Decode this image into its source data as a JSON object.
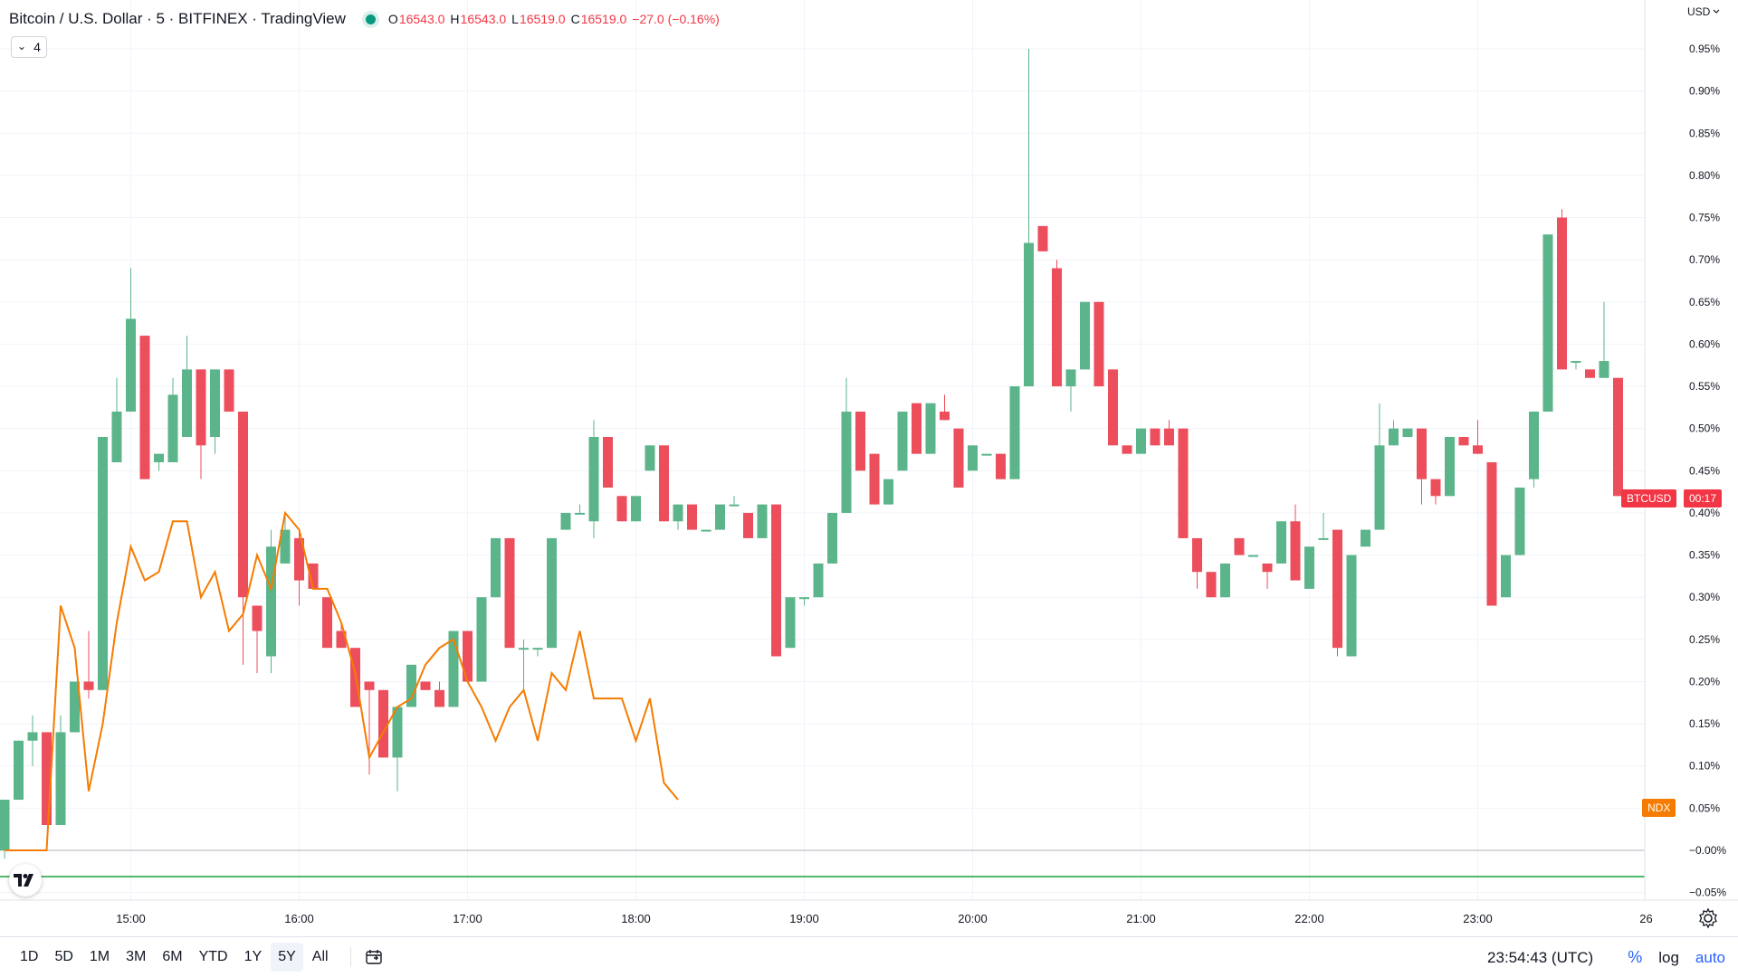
{
  "header": {
    "symbol_title": "Bitcoin / U.S. Dollar · 5 · BITFINEX · TradingView",
    "ohlc": {
      "o_label": "O",
      "o": "16543.0",
      "h_label": "H",
      "h": "16543.0",
      "l_label": "L",
      "l": "16519.0",
      "c_label": "C",
      "c": "16519.0",
      "change": "−27.0 (−0.16%)"
    },
    "indicator_count": "4"
  },
  "price_axis": {
    "currency_label": "USD",
    "btc_tag": "BTCUSD",
    "btc_countdown": "00:17",
    "ndx_tag": "NDX"
  },
  "bottom_bar": {
    "ranges": [
      "1D",
      "5D",
      "1M",
      "3M",
      "6M",
      "YTD",
      "1Y",
      "5Y",
      "All"
    ],
    "active_range": "5Y",
    "clock": "23:54:43 (UTC)",
    "percent_label": "%",
    "log_label": "log",
    "auto_label": "auto"
  },
  "colors": {
    "up": "#26a69a",
    "up_bar": "#5bb48a",
    "down": "#ef5350",
    "down_bar": "#ec4e5c",
    "ndx_line": "#f57c00",
    "base_line": "#1aa33a",
    "grid": "#f0f3fa"
  },
  "chart_data": {
    "type": "candlestick",
    "ylabel": "%",
    "ylim": [
      -0.06,
      0.98
    ],
    "y_ticks": [
      "0.95%",
      "0.90%",
      "0.85%",
      "0.80%",
      "0.75%",
      "0.70%",
      "0.65%",
      "0.60%",
      "0.55%",
      "0.50%",
      "0.45%",
      "0.40%",
      "0.35%",
      "0.30%",
      "0.25%",
      "0.20%",
      "0.15%",
      "0.10%",
      "0.05%",
      "−0.00%",
      "−0.05%"
    ],
    "x_ticks": [
      "15:00",
      "16:00",
      "17:00",
      "18:00",
      "19:00",
      "20:00",
      "21:00",
      "22:00",
      "23:00",
      "26"
    ],
    "time_start": "14:15",
    "bar_minutes": 5,
    "series": [
      {
        "name": "BTCUSD",
        "ohlc_pct": [
          [
            0.0,
            0.06,
            -0.01,
            0.06
          ],
          [
            0.06,
            0.13,
            0.06,
            0.13
          ],
          [
            0.13,
            0.16,
            0.1,
            0.14
          ],
          [
            0.14,
            0.14,
            0.03,
            0.03
          ],
          [
            0.03,
            0.16,
            0.03,
            0.14
          ],
          [
            0.14,
            0.2,
            0.14,
            0.2
          ],
          [
            0.2,
            0.26,
            0.18,
            0.19
          ],
          [
            0.19,
            0.49,
            0.19,
            0.49
          ],
          [
            0.46,
            0.56,
            0.46,
            0.52
          ],
          [
            0.52,
            0.69,
            0.52,
            0.63
          ],
          [
            0.61,
            0.61,
            0.44,
            0.44
          ],
          [
            0.46,
            0.47,
            0.45,
            0.47
          ],
          [
            0.46,
            0.56,
            0.46,
            0.54
          ],
          [
            0.49,
            0.61,
            0.49,
            0.57
          ],
          [
            0.57,
            0.57,
            0.44,
            0.48
          ],
          [
            0.49,
            0.57,
            0.47,
            0.57
          ],
          [
            0.57,
            0.57,
            0.52,
            0.52
          ],
          [
            0.52,
            0.52,
            0.22,
            0.3
          ],
          [
            0.29,
            0.29,
            0.21,
            0.26
          ],
          [
            0.23,
            0.38,
            0.21,
            0.36
          ],
          [
            0.34,
            0.4,
            0.34,
            0.38
          ],
          [
            0.37,
            0.38,
            0.29,
            0.32
          ],
          [
            0.34,
            0.34,
            0.31,
            0.31
          ],
          [
            0.3,
            0.3,
            0.24,
            0.24
          ],
          [
            0.26,
            0.27,
            0.24,
            0.24
          ],
          [
            0.24,
            0.24,
            0.17,
            0.17
          ],
          [
            0.2,
            0.2,
            0.09,
            0.19
          ],
          [
            0.19,
            0.19,
            0.11,
            0.11
          ],
          [
            0.11,
            0.17,
            0.07,
            0.17
          ],
          [
            0.17,
            0.22,
            0.17,
            0.22
          ],
          [
            0.2,
            0.2,
            0.19,
            0.19
          ],
          [
            0.19,
            0.2,
            0.17,
            0.17
          ],
          [
            0.17,
            0.26,
            0.17,
            0.26
          ],
          [
            0.26,
            0.26,
            0.2,
            0.2
          ],
          [
            0.2,
            0.3,
            0.2,
            0.3
          ],
          [
            0.3,
            0.37,
            0.3,
            0.37
          ],
          [
            0.37,
            0.37,
            0.24,
            0.24
          ],
          [
            0.24,
            0.25,
            0.19,
            0.24
          ],
          [
            0.24,
            0.24,
            0.23,
            0.24
          ],
          [
            0.24,
            0.37,
            0.24,
            0.37
          ],
          [
            0.38,
            0.4,
            0.38,
            0.4
          ],
          [
            0.4,
            0.41,
            0.4,
            0.4
          ],
          [
            0.39,
            0.51,
            0.37,
            0.49
          ],
          [
            0.49,
            0.49,
            0.43,
            0.43
          ],
          [
            0.42,
            0.42,
            0.39,
            0.39
          ],
          [
            0.39,
            0.42,
            0.39,
            0.42
          ],
          [
            0.45,
            0.48,
            0.45,
            0.48
          ],
          [
            0.48,
            0.48,
            0.39,
            0.39
          ],
          [
            0.39,
            0.4,
            0.38,
            0.41
          ],
          [
            0.41,
            0.41,
            0.38,
            0.38
          ],
          [
            0.38,
            0.38,
            0.38,
            0.38
          ],
          [
            0.38,
            0.41,
            0.38,
            0.41
          ],
          [
            0.41,
            0.42,
            0.41,
            0.41
          ],
          [
            0.4,
            0.4,
            0.37,
            0.37
          ],
          [
            0.37,
            0.41,
            0.37,
            0.41
          ],
          [
            0.41,
            0.41,
            0.23,
            0.23
          ],
          [
            0.24,
            0.3,
            0.24,
            0.3
          ],
          [
            0.3,
            0.3,
            0.29,
            0.3
          ],
          [
            0.3,
            0.34,
            0.3,
            0.34
          ],
          [
            0.34,
            0.4,
            0.34,
            0.4
          ],
          [
            0.4,
            0.56,
            0.4,
            0.52
          ],
          [
            0.52,
            0.52,
            0.45,
            0.45
          ],
          [
            0.47,
            0.47,
            0.41,
            0.41
          ],
          [
            0.41,
            0.44,
            0.41,
            0.44
          ],
          [
            0.45,
            0.52,
            0.45,
            0.52
          ],
          [
            0.53,
            0.53,
            0.47,
            0.47
          ],
          [
            0.47,
            0.53,
            0.47,
            0.53
          ],
          [
            0.52,
            0.54,
            0.51,
            0.51
          ],
          [
            0.5,
            0.5,
            0.43,
            0.43
          ],
          [
            0.45,
            0.48,
            0.45,
            0.48
          ],
          [
            0.47,
            0.47,
            0.47,
            0.47
          ],
          [
            0.47,
            0.47,
            0.44,
            0.44
          ],
          [
            0.44,
            0.55,
            0.44,
            0.55
          ],
          [
            0.55,
            0.95,
            0.55,
            0.72
          ],
          [
            0.74,
            0.74,
            0.71,
            0.71
          ],
          [
            0.69,
            0.7,
            0.55,
            0.55
          ],
          [
            0.55,
            0.55,
            0.52,
            0.57
          ],
          [
            0.57,
            0.65,
            0.57,
            0.65
          ],
          [
            0.65,
            0.65,
            0.55,
            0.55
          ],
          [
            0.57,
            0.57,
            0.48,
            0.48
          ],
          [
            0.48,
            0.48,
            0.47,
            0.47
          ],
          [
            0.47,
            0.5,
            0.47,
            0.5
          ],
          [
            0.5,
            0.5,
            0.48,
            0.48
          ],
          [
            0.5,
            0.51,
            0.48,
            0.48
          ],
          [
            0.5,
            0.5,
            0.37,
            0.37
          ],
          [
            0.37,
            0.37,
            0.31,
            0.33
          ],
          [
            0.33,
            0.33,
            0.3,
            0.3
          ],
          [
            0.3,
            0.34,
            0.3,
            0.34
          ],
          [
            0.37,
            0.37,
            0.35,
            0.35
          ],
          [
            0.35,
            0.35,
            0.35,
            0.35
          ],
          [
            0.34,
            0.34,
            0.31,
            0.33
          ],
          [
            0.34,
            0.39,
            0.34,
            0.39
          ],
          [
            0.39,
            0.41,
            0.32,
            0.32
          ],
          [
            0.31,
            0.36,
            0.31,
            0.36
          ],
          [
            0.37,
            0.4,
            0.37,
            0.37
          ],
          [
            0.38,
            0.38,
            0.23,
            0.24
          ],
          [
            0.23,
            0.35,
            0.23,
            0.35
          ],
          [
            0.36,
            0.38,
            0.36,
            0.38
          ],
          [
            0.38,
            0.53,
            0.38,
            0.48
          ],
          [
            0.48,
            0.51,
            0.48,
            0.5
          ],
          [
            0.49,
            0.5,
            0.49,
            0.5
          ],
          [
            0.5,
            0.5,
            0.41,
            0.44
          ],
          [
            0.44,
            0.44,
            0.41,
            0.42
          ],
          [
            0.42,
            0.49,
            0.42,
            0.49
          ],
          [
            0.49,
            0.49,
            0.48,
            0.48
          ],
          [
            0.48,
            0.51,
            0.47,
            0.47
          ],
          [
            0.46,
            0.46,
            0.29,
            0.29
          ],
          [
            0.3,
            0.32,
            0.3,
            0.35
          ],
          [
            0.35,
            0.42,
            0.35,
            0.43
          ],
          [
            0.44,
            0.52,
            0.43,
            0.52
          ],
          [
            0.52,
            0.73,
            0.52,
            0.73
          ],
          [
            0.75,
            0.76,
            0.57,
            0.57
          ],
          [
            0.58,
            0.58,
            0.57,
            0.58
          ],
          [
            0.57,
            0.57,
            0.56,
            0.56
          ],
          [
            0.56,
            0.65,
            0.56,
            0.58
          ],
          [
            0.56,
            0.56,
            0.42,
            0.42
          ]
        ]
      },
      {
        "name": "NDX",
        "pct": [
          0.0,
          0.0,
          0.0,
          0.0,
          0.29,
          0.24,
          0.07,
          0.15,
          0.27,
          0.36,
          0.32,
          0.33,
          0.39,
          0.39,
          0.3,
          0.33,
          0.26,
          0.28,
          0.35,
          0.31,
          0.4,
          0.38,
          0.31,
          0.31,
          0.27,
          0.21,
          0.11,
          0.14,
          0.17,
          0.18,
          0.22,
          0.24,
          0.25,
          0.2,
          0.17,
          0.13,
          0.17,
          0.19,
          0.13,
          0.21,
          0.19,
          0.26,
          0.18,
          0.18,
          0.18,
          0.13,
          0.18,
          0.08,
          0.06
        ]
      }
    ]
  }
}
